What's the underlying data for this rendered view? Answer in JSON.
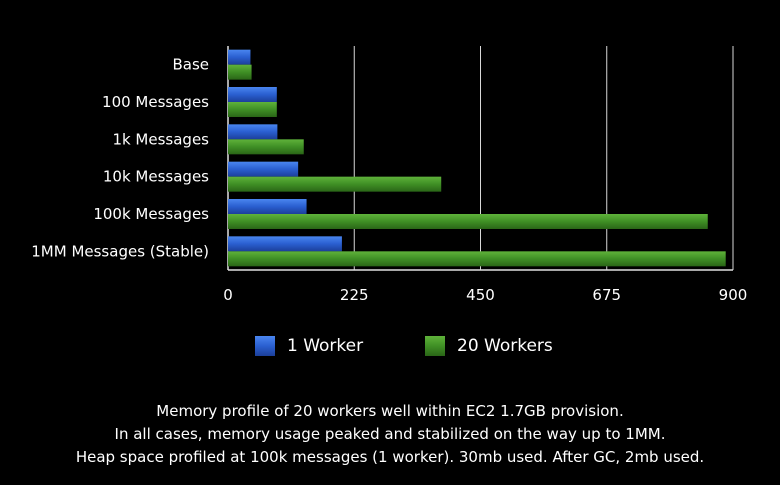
{
  "chart_data": {
    "type": "bar",
    "orientation": "horizontal",
    "categories": [
      "Base",
      "100 Messages",
      "1k Messages",
      "10k Messages",
      "100k Messages",
      "1MM Messages (Stable)"
    ],
    "series": [
      {
        "name": "1 Worker",
        "color": "#2a5fd0",
        "values": [
          40,
          87,
          88,
          125,
          140,
          203
        ]
      },
      {
        "name": "20 Workers",
        "color": "#3f8f25",
        "values": [
          42,
          87,
          135,
          380,
          855,
          887
        ]
      }
    ],
    "xlim": [
      0,
      900
    ],
    "xticks": [
      "0",
      "225",
      "450",
      "675",
      "900"
    ],
    "grid": true,
    "legend_position": "bottom"
  },
  "legend": {
    "items": [
      "1 Worker",
      "20 Workers"
    ]
  },
  "caption": {
    "lines": [
      "Memory profile of 20 workers well within EC2 1.7GB provision.",
      "In all cases, memory usage peaked and stabilized on the way up to 1MM.",
      "Heap space profiled at 100k messages (1 worker).  30mb used.  After GC, 2mb used."
    ]
  }
}
